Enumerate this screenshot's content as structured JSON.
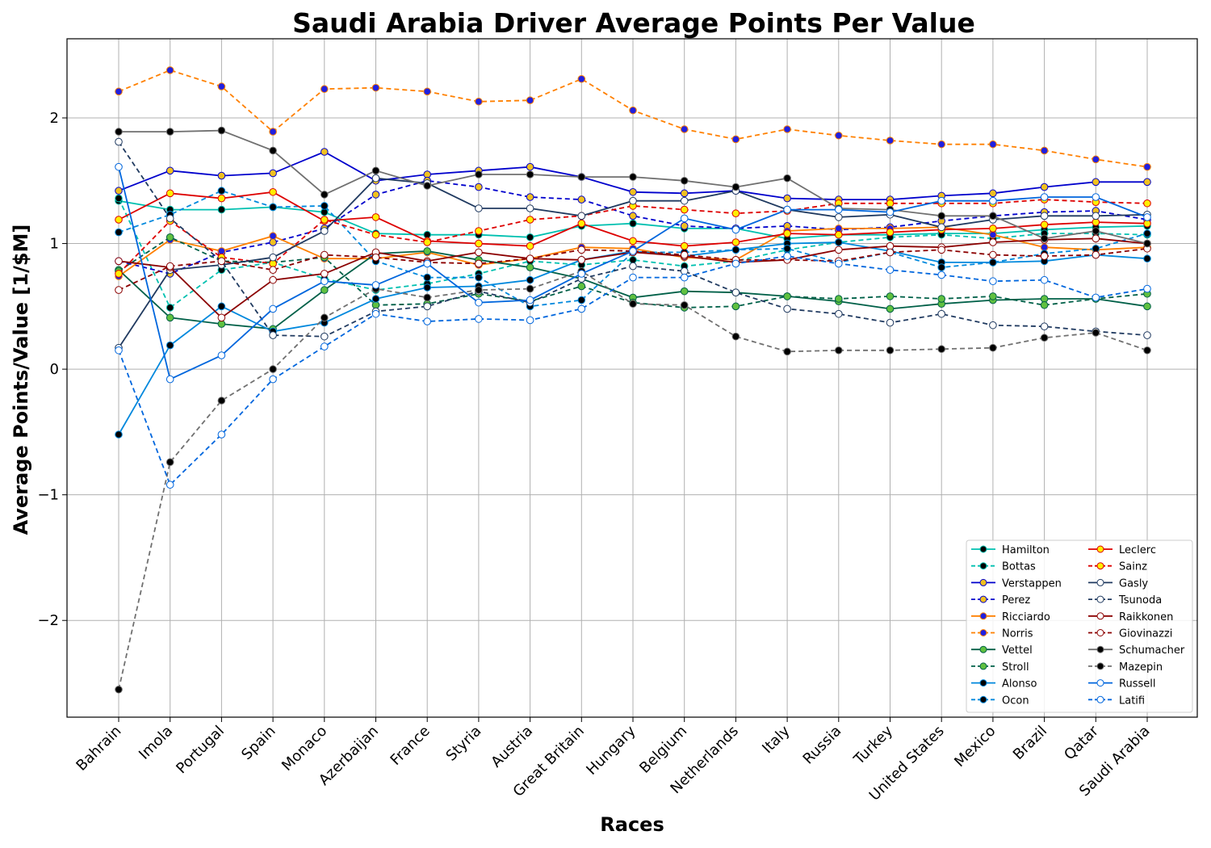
{
  "chart_data": {
    "type": "line",
    "title": "Saudi Arabia Driver Average Points Per Value",
    "xlabel": "Races",
    "ylabel": "Average Points/Value [1/$M]",
    "categories": [
      "Bahrain",
      "Imola",
      "Portugal",
      "Spain",
      "Monaco",
      "Azerbaijan",
      "France",
      "Styria",
      "Austria",
      "Great Britain",
      "Hungary",
      "Belgium",
      "Netherlands",
      "Italy",
      "Russia",
      "Turkey",
      "United States",
      "Mexico",
      "Brazil",
      "Qatar",
      "Saudi Arabia"
    ],
    "yticks": [
      -2,
      -1,
      0,
      1,
      2
    ],
    "ylim": [
      -2.77,
      2.63
    ],
    "grid": true,
    "legend_position": "lower-right",
    "series": [
      {
        "name": "Hamilton",
        "color": "#00c0b0",
        "dash": false,
        "marker_fill": "#000000",
        "marker_edge": "#00c0b0",
        "values": [
          1.34,
          1.27,
          1.27,
          1.29,
          1.25,
          1.08,
          1.07,
          1.07,
          1.05,
          1.14,
          1.16,
          1.12,
          1.12,
          1.04,
          1.07,
          1.07,
          1.08,
          1.08,
          1.11,
          1.13,
          1.14
        ]
      },
      {
        "name": "Bottas",
        "color": "#00c0b0",
        "dash": true,
        "marker_fill": "#000000",
        "marker_edge": "#00c0b0",
        "values": [
          1.36,
          0.49,
          0.79,
          0.85,
          0.72,
          0.63,
          0.68,
          0.76,
          0.86,
          0.83,
          0.87,
          0.82,
          0.86,
          0.95,
          1.01,
          1.05,
          1.07,
          1.04,
          1.08,
          1.08,
          1.07
        ]
      },
      {
        "name": "Verstappen",
        "color": "#0000cc",
        "dash": false,
        "marker_fill": "#f0c020",
        "marker_edge": "#0000cc",
        "values": [
          1.42,
          1.58,
          1.54,
          1.56,
          1.73,
          1.5,
          1.55,
          1.58,
          1.61,
          1.53,
          1.41,
          1.4,
          1.42,
          1.36,
          1.35,
          1.35,
          1.38,
          1.4,
          1.45,
          1.49,
          1.49
        ]
      },
      {
        "name": "Perez",
        "color": "#0000cc",
        "dash": true,
        "marker_fill": "#f0c020",
        "marker_edge": "#0000cc",
        "values": [
          0.86,
          0.76,
          0.93,
          1.01,
          1.12,
          1.39,
          1.5,
          1.45,
          1.37,
          1.35,
          1.22,
          1.14,
          1.12,
          1.14,
          1.11,
          1.13,
          1.18,
          1.22,
          1.25,
          1.26,
          1.19
        ]
      },
      {
        "name": "Ricciardo",
        "color": "#ff8000",
        "dash": false,
        "marker_fill": "#2020e0",
        "marker_edge": "#ff8000",
        "values": [
          0.74,
          1.03,
          0.94,
          1.06,
          0.88,
          0.88,
          0.93,
          0.83,
          0.88,
          0.97,
          0.96,
          0.89,
          0.87,
          1.1,
          1.12,
          1.12,
          1.13,
          1.07,
          0.97,
          0.95,
          0.97
        ]
      },
      {
        "name": "Norris",
        "color": "#ff8000",
        "dash": true,
        "marker_fill": "#2020e0",
        "marker_edge": "#ff8000",
        "values": [
          2.21,
          2.38,
          2.25,
          1.89,
          2.23,
          2.24,
          2.21,
          2.13,
          2.14,
          2.31,
          2.06,
          1.91,
          1.83,
          1.91,
          1.86,
          1.82,
          1.79,
          1.79,
          1.74,
          1.67,
          1.61
        ]
      },
      {
        "name": "Vettel",
        "color": "#006048",
        "dash": false,
        "marker_fill": "#60c040",
        "marker_edge": "#006048",
        "values": [
          0.79,
          0.41,
          0.36,
          0.32,
          0.63,
          0.92,
          0.94,
          0.87,
          0.81,
          0.72,
          0.57,
          0.62,
          0.61,
          0.58,
          0.54,
          0.48,
          0.52,
          0.55,
          0.56,
          0.56,
          0.5
        ]
      },
      {
        "name": "Stroll",
        "color": "#006048",
        "dash": true,
        "marker_fill": "#60c040",
        "marker_edge": "#006048",
        "values": [
          0.78,
          1.05,
          0.86,
          0.85,
          0.89,
          0.51,
          0.52,
          0.6,
          0.54,
          0.66,
          0.53,
          0.49,
          0.5,
          0.58,
          0.56,
          0.58,
          0.56,
          0.58,
          0.51,
          0.56,
          0.6
        ]
      },
      {
        "name": "Alonso",
        "color": "#0088dd",
        "dash": false,
        "marker_fill": "#000000",
        "marker_edge": "#0088dd",
        "values": [
          -0.52,
          0.19,
          0.5,
          0.3,
          0.37,
          0.56,
          0.65,
          0.66,
          0.71,
          0.87,
          0.94,
          0.9,
          0.95,
          1.0,
          1.01,
          0.94,
          0.85,
          0.85,
          0.86,
          0.91,
          0.88
        ]
      },
      {
        "name": "Ocon",
        "color": "#0088dd",
        "dash": true,
        "marker_fill": "#000000",
        "marker_edge": "#0088dd",
        "values": [
          1.09,
          1.23,
          1.42,
          1.29,
          1.3,
          0.86,
          0.73,
          0.73,
          0.5,
          0.55,
          0.93,
          0.93,
          0.95,
          0.96,
          0.85,
          0.93,
          0.81,
          0.85,
          0.92,
          0.96,
          1.08
        ]
      },
      {
        "name": "Leclerc",
        "color": "#dd0000",
        "dash": false,
        "marker_fill": "#ffee00",
        "marker_edge": "#dd0000",
        "values": [
          1.19,
          1.4,
          1.36,
          1.41,
          1.18,
          1.21,
          1.02,
          1.0,
          0.98,
          1.16,
          1.02,
          0.98,
          1.01,
          1.08,
          1.07,
          1.09,
          1.11,
          1.12,
          1.15,
          1.17,
          1.16
        ]
      },
      {
        "name": "Sainz",
        "color": "#dd0000",
        "dash": true,
        "marker_fill": "#ffee00",
        "marker_edge": "#dd0000",
        "values": [
          0.76,
          1.18,
          0.89,
          0.84,
          1.19,
          1.07,
          1.01,
          1.1,
          1.19,
          1.22,
          1.3,
          1.27,
          1.24,
          1.26,
          1.32,
          1.32,
          1.32,
          1.32,
          1.35,
          1.33,
          1.32
        ]
      },
      {
        "name": "Gasly",
        "color": "#203a60",
        "dash": false,
        "marker_fill": "#ffffff",
        "marker_edge": "#203a60",
        "values": [
          0.17,
          0.79,
          0.83,
          0.89,
          1.1,
          1.52,
          1.48,
          1.28,
          1.28,
          1.22,
          1.34,
          1.34,
          1.42,
          1.27,
          1.21,
          1.23,
          1.13,
          1.19,
          1.22,
          1.22,
          1.23
        ]
      },
      {
        "name": "Tsunoda",
        "color": "#203a60",
        "dash": true,
        "marker_fill": "#ffffff",
        "marker_edge": "#203a60",
        "values": [
          1.81,
          1.2,
          0.86,
          0.27,
          0.26,
          0.46,
          0.5,
          0.62,
          0.53,
          0.72,
          0.82,
          0.78,
          0.61,
          0.48,
          0.44,
          0.37,
          0.44,
          0.35,
          0.34,
          0.3,
          0.27
        ]
      },
      {
        "name": "Raikkonen",
        "color": "#8b0000",
        "dash": false,
        "marker_fill": "#ffffff",
        "marker_edge": "#8b0000",
        "values": [
          0.86,
          0.81,
          0.41,
          0.71,
          0.76,
          0.93,
          0.86,
          0.93,
          0.88,
          0.87,
          0.93,
          0.9,
          0.85,
          0.87,
          0.95,
          0.98,
          0.97,
          1.01,
          1.03,
          1.04,
          1.0
        ]
      },
      {
        "name": "Giovinazzi",
        "color": "#8b0000",
        "dash": true,
        "marker_fill": "#ffffff",
        "marker_edge": "#8b0000",
        "values": [
          0.63,
          0.82,
          0.86,
          0.79,
          0.91,
          0.89,
          0.85,
          0.84,
          0.88,
          0.95,
          0.94,
          0.91,
          0.87,
          0.87,
          0.86,
          0.93,
          0.95,
          0.91,
          0.9,
          0.91,
          0.96
        ]
      },
      {
        "name": "Schumacher",
        "color": "#707070",
        "dash": false,
        "marker_fill": "#000000",
        "marker_edge": "#707070",
        "values": [
          1.89,
          1.89,
          1.9,
          1.74,
          1.39,
          1.58,
          1.46,
          1.55,
          1.55,
          1.53,
          1.53,
          1.5,
          1.45,
          1.52,
          1.28,
          1.27,
          1.22,
          1.22,
          1.04,
          1.1,
          1.0
        ]
      },
      {
        "name": "Mazepin",
        "color": "#707070",
        "dash": true,
        "marker_fill": "#000000",
        "marker_edge": "#707070",
        "values": [
          -2.55,
          -0.74,
          -0.25,
          0.0,
          0.41,
          0.64,
          0.57,
          0.63,
          0.64,
          0.78,
          0.52,
          0.51,
          0.26,
          0.14,
          0.15,
          0.15,
          0.16,
          0.17,
          0.25,
          0.29,
          0.15
        ]
      },
      {
        "name": "Russell",
        "color": "#0066dd",
        "dash": false,
        "marker_fill": "#ffffff",
        "marker_edge": "#0066dd",
        "values": [
          1.61,
          -0.08,
          0.11,
          0.48,
          0.7,
          0.67,
          0.84,
          0.53,
          0.55,
          0.76,
          0.94,
          1.2,
          1.11,
          1.27,
          1.27,
          1.25,
          1.34,
          1.34,
          1.37,
          1.37,
          1.21
        ]
      },
      {
        "name": "Latifi",
        "color": "#0066dd",
        "dash": true,
        "marker_fill": "#ffffff",
        "marker_edge": "#0066dd",
        "values": [
          0.15,
          -0.92,
          -0.52,
          -0.08,
          0.18,
          0.44,
          0.38,
          0.4,
          0.39,
          0.48,
          0.73,
          0.73,
          0.84,
          0.9,
          0.84,
          0.79,
          0.75,
          0.7,
          0.71,
          0.57,
          0.64
        ]
      }
    ]
  }
}
